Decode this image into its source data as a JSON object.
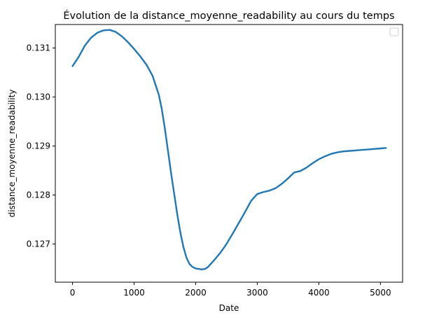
{
  "chart_data": {
    "type": "line",
    "title": "Évolution de la distance_moyenne_readability au cours du temps",
    "xlabel": "Date",
    "ylabel": "distance_moyenne_readability",
    "xlim": [
      -280,
      5360
    ],
    "ylim": [
      0.12622,
      0.13148
    ],
    "xticks": [
      0,
      1000,
      2000,
      3000,
      4000,
      5000
    ],
    "xtick_labels": [
      "0",
      "1000",
      "2000",
      "3000",
      "4000",
      "5000"
    ],
    "yticks": [
      0.127,
      0.128,
      0.129,
      0.13,
      0.131
    ],
    "ytick_labels": [
      "0.127",
      "0.128",
      "0.129",
      "0.130",
      "0.131"
    ],
    "grid": false,
    "legend": {
      "placement": "top-right",
      "entries": []
    },
    "series": [
      {
        "color": "#1f77b4",
        "x": [
          0,
          100,
          200,
          300,
          400,
          500,
          600,
          700,
          800,
          900,
          1000,
          1100,
          1200,
          1300,
          1400,
          1450,
          1500,
          1550,
          1600,
          1650,
          1700,
          1750,
          1800,
          1850,
          1900,
          1950,
          2000,
          2050,
          2100,
          2150,
          2200,
          2250,
          2300,
          2400,
          2500,
          2600,
          2700,
          2800,
          2900,
          3000,
          3100,
          3200,
          3300,
          3400,
          3500,
          3600,
          3700,
          3800,
          3900,
          4000,
          4100,
          4200,
          4300,
          4400,
          4500,
          4600,
          4700,
          4800,
          4900,
          5000,
          5090
        ],
        "y": [
          0.13063,
          0.13082,
          0.13105,
          0.13121,
          0.13131,
          0.13136,
          0.13137,
          0.13133,
          0.13124,
          0.13112,
          0.13098,
          0.13083,
          0.13066,
          0.13043,
          0.13005,
          0.12975,
          0.12935,
          0.1289,
          0.12845,
          0.12803,
          0.12761,
          0.12724,
          0.12694,
          0.12672,
          0.12659,
          0.12653,
          0.1265,
          0.12649,
          0.12648,
          0.12649,
          0.12653,
          0.1266,
          0.12667,
          0.12682,
          0.127,
          0.12721,
          0.12743,
          0.12765,
          0.12788,
          0.12802,
          0.12806,
          0.12809,
          0.12814,
          0.12823,
          0.12834,
          0.12846,
          0.12849,
          0.12856,
          0.12865,
          0.12873,
          0.12879,
          0.12884,
          0.12887,
          0.12889,
          0.1289,
          0.12891,
          0.12892,
          0.12893,
          0.12894,
          0.12895,
          0.12896
        ]
      }
    ]
  }
}
